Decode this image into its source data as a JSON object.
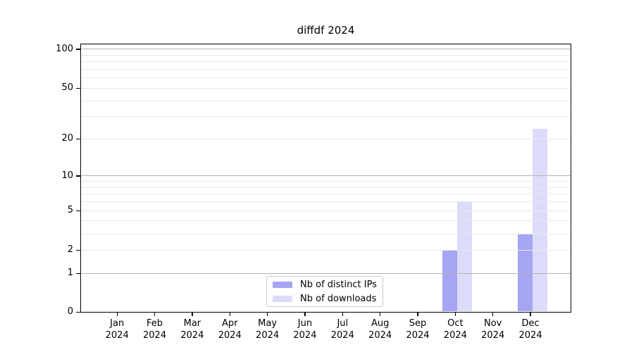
{
  "chart_data": {
    "type": "bar",
    "title": "diffdf 2024",
    "scale": "log1p",
    "categories": [
      "Jan",
      "Feb",
      "Mar",
      "Apr",
      "May",
      "Jun",
      "Jul",
      "Aug",
      "Sep",
      "Oct",
      "Nov",
      "Dec"
    ],
    "x_tick_year": "2024",
    "series": [
      {
        "name": "Nb of distinct IPs",
        "color": "#a5a5f3",
        "values": [
          0,
          0,
          0,
          0,
          0,
          0,
          0,
          0,
          0,
          2,
          0,
          3
        ]
      },
      {
        "name": "Nb of downloads",
        "color": "#dcdcfa",
        "values": [
          0,
          0,
          0,
          0,
          0,
          0,
          0,
          0,
          0,
          6,
          0,
          24
        ]
      }
    ],
    "y_ticks": [
      0,
      1,
      2,
      5,
      10,
      20,
      50,
      100
    ],
    "ylim": [
      0,
      110
    ],
    "grid": true,
    "major_gridline_values": [
      1,
      10,
      100
    ],
    "minor_gridline_values": [
      2,
      3,
      4,
      5,
      6,
      7,
      8,
      9,
      20,
      30,
      40,
      50,
      60,
      70,
      80,
      90
    ],
    "grid_major_color": "#b3b3b3",
    "grid_minor_color": "#e8e8e8",
    "legend_position": "lower center",
    "xlabel": "",
    "ylabel": ""
  }
}
